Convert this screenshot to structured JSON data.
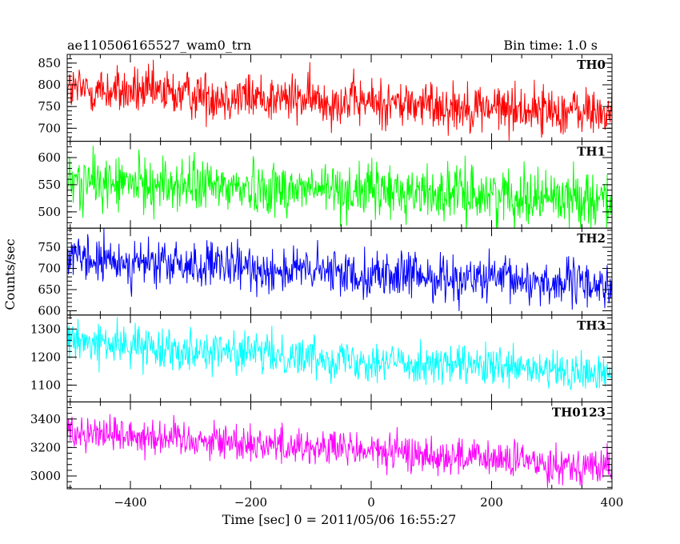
{
  "header": {
    "title": "ae110506165527_wam0_trn",
    "bin_time": "Bin time: 1.0 s"
  },
  "axes": {
    "xlabel": "Time [sec] 0 = 2011/05/06 16:55:27",
    "ylabel": "Counts/sec"
  },
  "chart_data": {
    "type": "line",
    "title": "ae110506165527_wam0_trn",
    "subtitle": "Bin time: 1.0 s",
    "xlabel": "Time [sec] 0 = 2011/05/06 16:55:27",
    "ylabel": "Counts/sec",
    "xlim": [
      -505,
      400
    ],
    "x_start": -505,
    "x_end": 400,
    "x_step": 1,
    "x_ticks": [
      -400,
      -200,
      0,
      200,
      400
    ],
    "x_tick_labels": [
      "−400",
      "−200",
      "0",
      "200",
      "400"
    ],
    "grid": false,
    "legend": "none",
    "panels": [
      {
        "name": "TH0",
        "color": "#ff0000",
        "ylim": [
          670,
          870
        ],
        "yticks": [
          700,
          750,
          800,
          850
        ],
        "trend_start": 790,
        "trend_end": 735,
        "noise": 28
      },
      {
        "name": "TH1",
        "color": "#00ff00",
        "ylim": [
          470,
          630
        ],
        "yticks": [
          500,
          550,
          600
        ],
        "trend_start": 555,
        "trend_end": 525,
        "noise": 25
      },
      {
        "name": "TH2",
        "color": "#0000ff",
        "ylim": [
          590,
          795
        ],
        "yticks": [
          600,
          650,
          700,
          750
        ],
        "trend_start": 720,
        "trend_end": 660,
        "noise": 27
      },
      {
        "name": "TH3",
        "color": "#00ffff",
        "ylim": [
          1040,
          1350
        ],
        "yticks": [
          1100,
          1200,
          1300
        ],
        "trend_start": 1255,
        "trend_end": 1135,
        "noise": 35
      },
      {
        "name": "TH0123",
        "color": "#ff00ff",
        "ylim": [
          2910,
          3520
        ],
        "yticks": [
          3000,
          3200,
          3400
        ],
        "trend_start": 3320,
        "trend_end": 3060,
        "noise": 65
      }
    ]
  }
}
